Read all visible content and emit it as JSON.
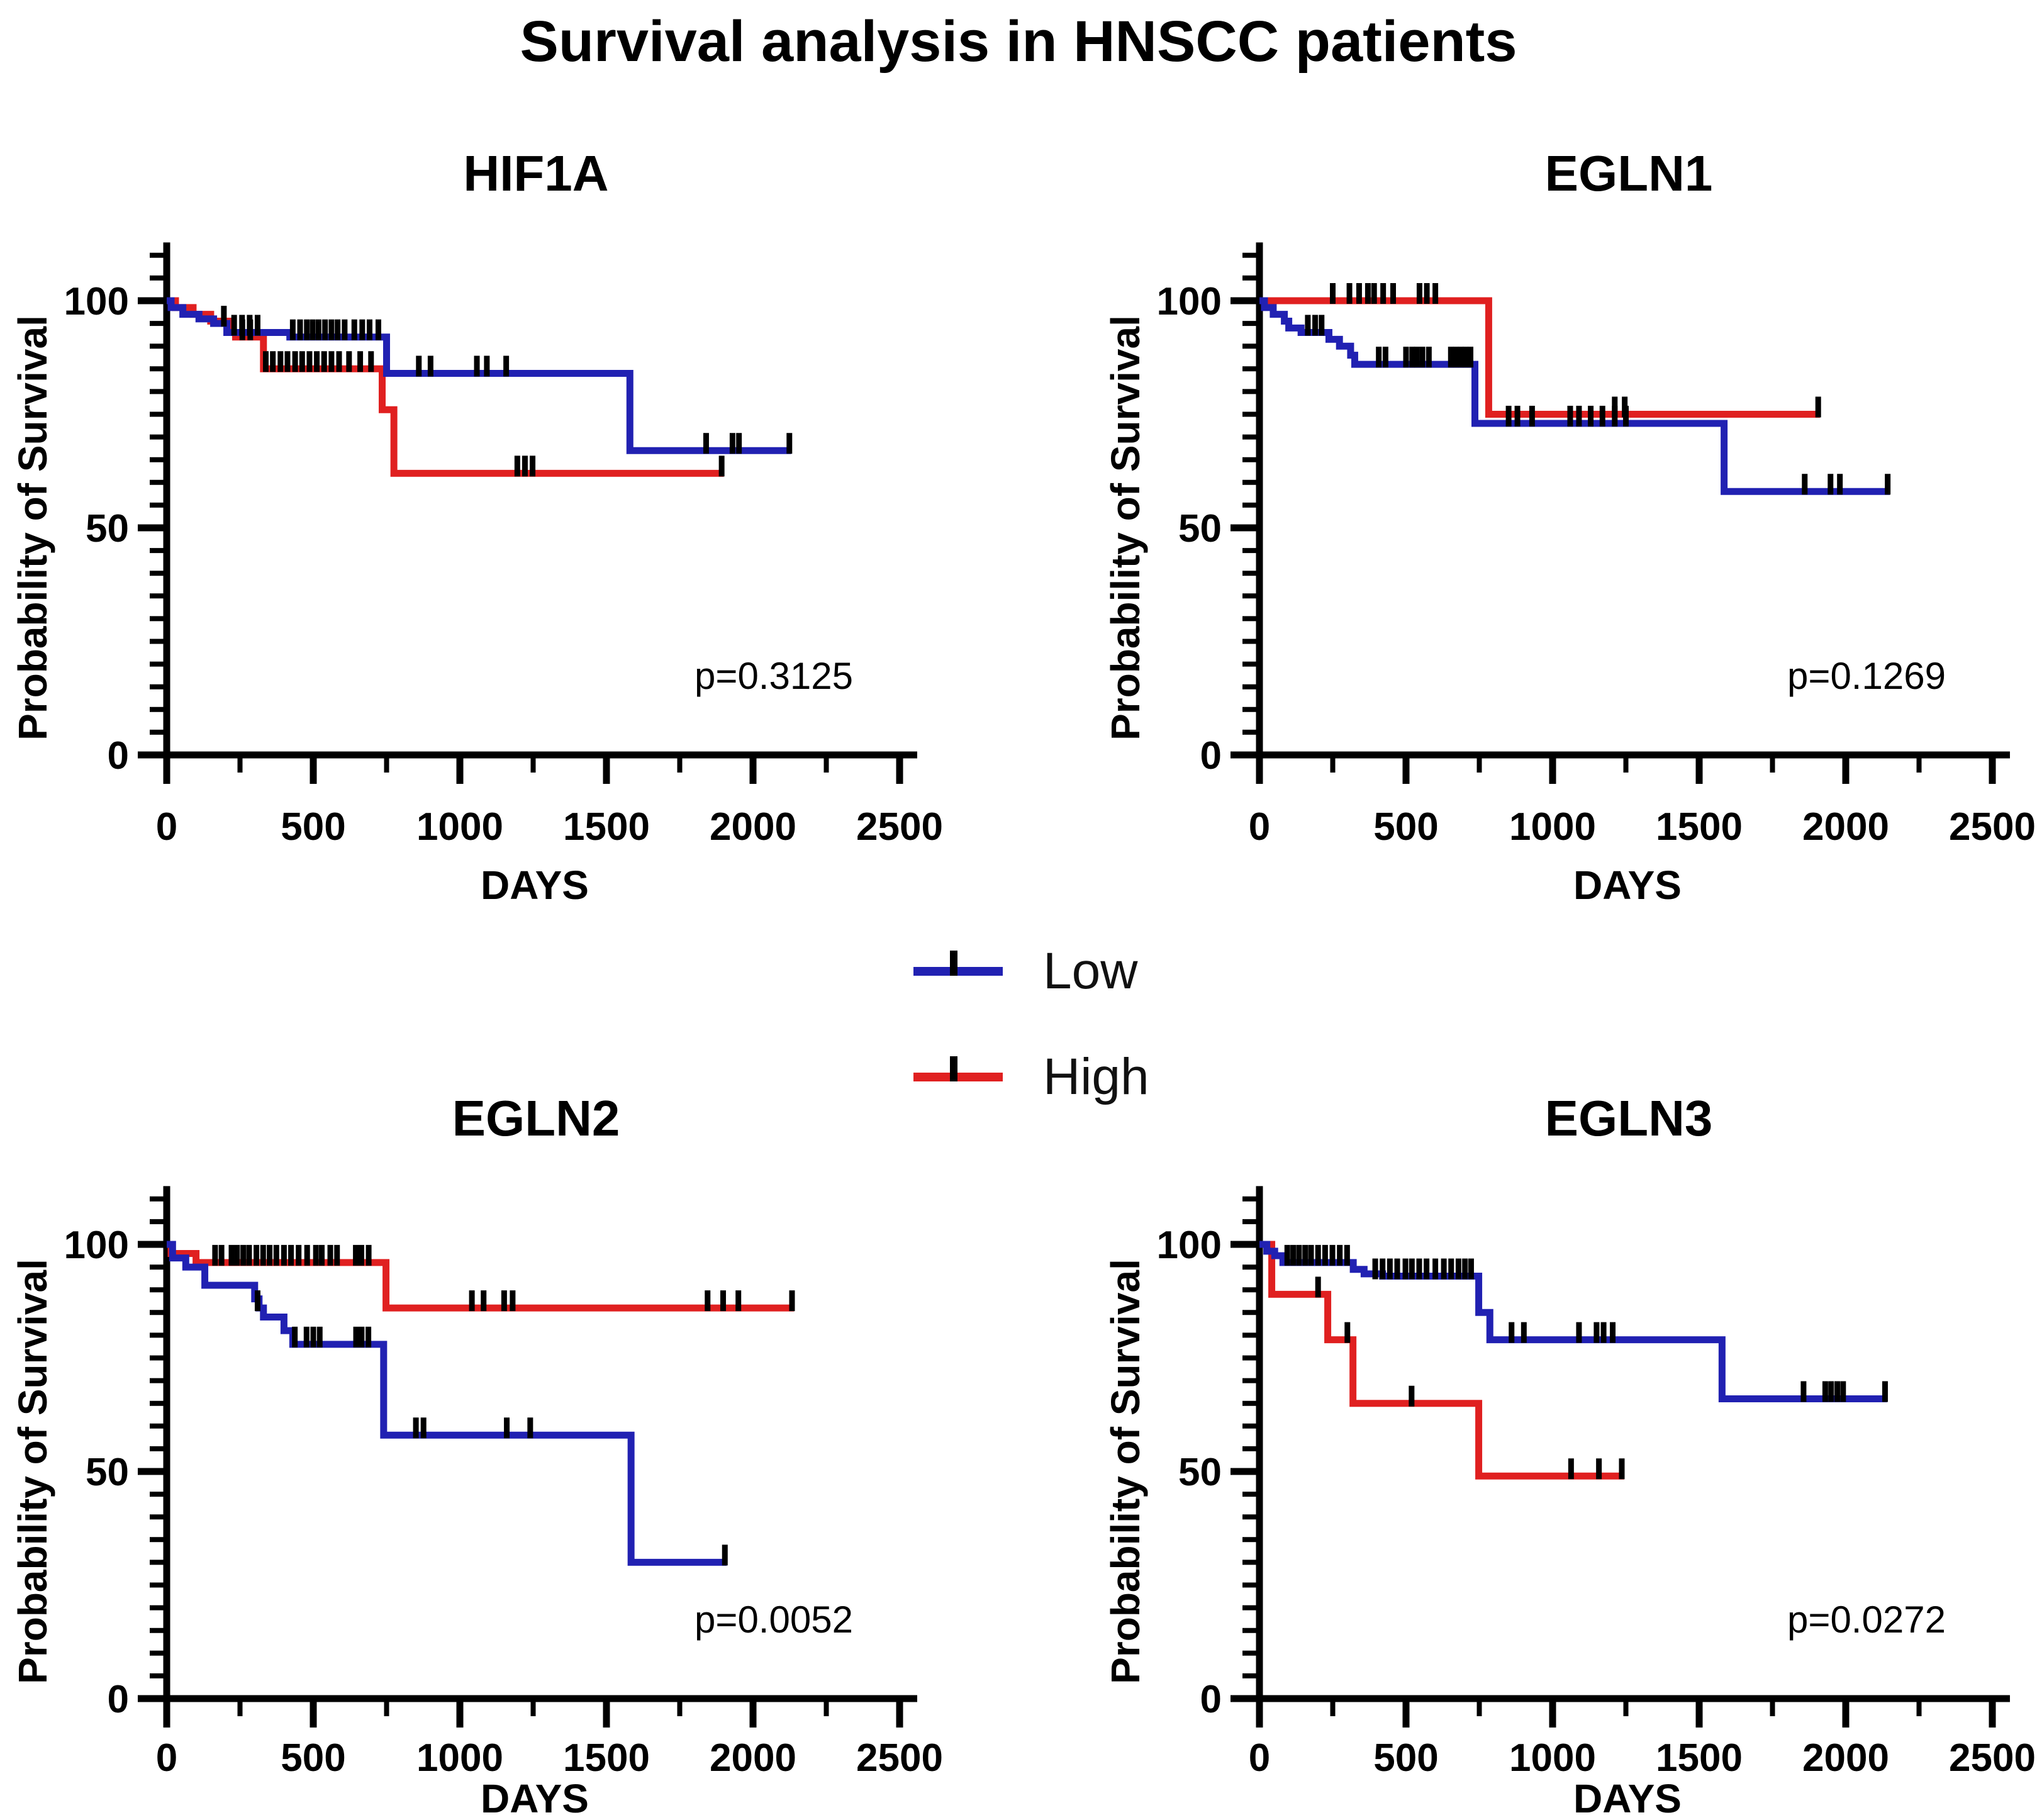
{
  "figure_title": "Survival analysis in HNSCC patients",
  "legend": {
    "items": [
      {
        "label": "Low",
        "color": "#2121b2"
      },
      {
        "label": "High",
        "color": "#e02020"
      }
    ]
  },
  "axes": {
    "xlabel": "DAYS",
    "ylabel": "Probability of Survival",
    "xticks": [
      0,
      500,
      1000,
      1500,
      2000,
      2500
    ],
    "x_minor_ticks": [
      250,
      750,
      1250,
      1750,
      2250
    ],
    "yticks": [
      0,
      50,
      100
    ],
    "y_minor_step": 5,
    "xlim": [
      0,
      2560
    ],
    "ylim": [
      0,
      112
    ],
    "grid": false,
    "legend_position": "center-between-rows"
  },
  "chart_data": [
    {
      "type": "line",
      "subtype": "kaplan-meier-step",
      "title": "HIF1A",
      "p_label": "p=0.3125",
      "series": [
        {
          "name": "Low",
          "color": "#2121b2",
          "points": [
            [
              0,
              100
            ],
            [
              15,
              98.5
            ],
            [
              55,
              97
            ],
            [
              110,
              96
            ],
            [
              160,
              95
            ],
            [
              205,
              93
            ],
            [
              420,
              92
            ],
            [
              750,
              84
            ],
            [
              1580,
              67
            ],
            [
              2130,
              67
            ]
          ],
          "censors": [
            [
              195,
              95
            ],
            [
              230,
              93
            ],
            [
              257,
              93
            ],
            [
              283,
              93
            ],
            [
              310,
              93
            ],
            [
              430,
              92
            ],
            [
              455,
              92
            ],
            [
              478,
              92
            ],
            [
              498,
              92
            ],
            [
              518,
              92
            ],
            [
              540,
              92
            ],
            [
              562,
              92
            ],
            [
              583,
              92
            ],
            [
              607,
              92
            ],
            [
              640,
              92
            ],
            [
              667,
              92
            ],
            [
              692,
              92
            ],
            [
              722,
              92
            ],
            [
              860,
              84
            ],
            [
              900,
              84
            ],
            [
              1058,
              84
            ],
            [
              1092,
              84
            ],
            [
              1158,
              84
            ],
            [
              1840,
              67
            ],
            [
              1930,
              67
            ],
            [
              1952,
              67
            ],
            [
              2124,
              67
            ]
          ]
        },
        {
          "name": "High",
          "color": "#e02020",
          "points": [
            [
              0,
              100
            ],
            [
              30,
              98.5
            ],
            [
              90,
              97
            ],
            [
              150,
              95.5
            ],
            [
              210,
              93
            ],
            [
              235,
              92
            ],
            [
              330,
              85
            ],
            [
              735,
              76
            ],
            [
              775,
              62
            ],
            [
              1900,
              62
            ]
          ],
          "censors": [
            [
              258,
              92
            ],
            [
              285,
              92
            ],
            [
              338,
              85
            ],
            [
              362,
              85
            ],
            [
              388,
              85
            ],
            [
              412,
              85
            ],
            [
              438,
              85
            ],
            [
              462,
              85
            ],
            [
              487,
              85
            ],
            [
              512,
              85
            ],
            [
              537,
              85
            ],
            [
              562,
              85
            ],
            [
              588,
              85
            ],
            [
              622,
              85
            ],
            [
              660,
              85
            ],
            [
              697,
              85
            ],
            [
              1196,
              62
            ],
            [
              1222,
              62
            ],
            [
              1248,
              62
            ],
            [
              1893,
              62
            ]
          ]
        }
      ]
    },
    {
      "type": "line",
      "subtype": "kaplan-meier-step",
      "title": "EGLN1",
      "p_label": "p=0.1269",
      "series": [
        {
          "name": "Low",
          "color": "#2121b2",
          "points": [
            [
              0,
              100
            ],
            [
              17,
              98.5
            ],
            [
              47,
              97
            ],
            [
              85,
              95.5
            ],
            [
              100,
              94
            ],
            [
              142,
              93
            ],
            [
              237,
              91.5
            ],
            [
              273,
              90
            ],
            [
              311,
              88
            ],
            [
              325,
              86
            ],
            [
              735,
              73
            ],
            [
              1585,
              58
            ],
            [
              2150,
              58
            ]
          ],
          "censors": [
            [
              165,
              93
            ],
            [
              190,
              93
            ],
            [
              212,
              93
            ],
            [
              407,
              86
            ],
            [
              430,
              86
            ],
            [
              500,
              86
            ],
            [
              521,
              86
            ],
            [
              537,
              86
            ],
            [
              556,
              86
            ],
            [
              578,
              86
            ],
            [
              653,
              86
            ],
            [
              670,
              86
            ],
            [
              687,
              86
            ],
            [
              703,
              86
            ],
            [
              720,
              86
            ],
            [
              850,
              73
            ],
            [
              880,
              73
            ],
            [
              930,
              73
            ],
            [
              1060,
              73
            ],
            [
              1090,
              73
            ],
            [
              1130,
              73
            ],
            [
              1170,
              73
            ],
            [
              1212,
              73
            ],
            [
              1250,
              73
            ],
            [
              1860,
              58
            ],
            [
              1948,
              58
            ],
            [
              1980,
              58
            ],
            [
              2143,
              58
            ]
          ]
        },
        {
          "name": "High",
          "color": "#e02020",
          "points": [
            [
              0,
              100
            ],
            [
              782,
              75
            ],
            [
              1912,
              75
            ]
          ],
          "censors": [
            [
              250,
              100
            ],
            [
              307,
              100
            ],
            [
              340,
              100
            ],
            [
              370,
              100
            ],
            [
              391,
              100
            ],
            [
              422,
              100
            ],
            [
              456,
              100
            ],
            [
              546,
              100
            ],
            [
              571,
              100
            ],
            [
              600,
              100
            ],
            [
              1212,
              75
            ],
            [
              1246,
              75
            ],
            [
              1906,
              75
            ]
          ]
        }
      ]
    },
    {
      "type": "line",
      "subtype": "kaplan-meier-step",
      "title": "EGLN2",
      "p_label": "p=0.0052",
      "series": [
        {
          "name": "Low",
          "color": "#2121b2",
          "points": [
            [
              0,
              100
            ],
            [
              20,
              97
            ],
            [
              65,
              95
            ],
            [
              130,
              91
            ],
            [
              300,
              88
            ],
            [
              315,
              86
            ],
            [
              330,
              84
            ],
            [
              400,
              81
            ],
            [
              430,
              78
            ],
            [
              740,
              58
            ],
            [
              1584,
              30
            ],
            [
              1910,
              30
            ]
          ],
          "censors": [
            [
              310,
              86
            ],
            [
              437,
              78
            ],
            [
              477,
              78
            ],
            [
              500,
              78
            ],
            [
              522,
              78
            ],
            [
              646,
              78
            ],
            [
              665,
              78
            ],
            [
              688,
              78
            ],
            [
              850,
              58
            ],
            [
              876,
              58
            ],
            [
              1160,
              58
            ],
            [
              1240,
              58
            ],
            [
              1904,
              30
            ]
          ]
        },
        {
          "name": "High",
          "color": "#e02020",
          "points": [
            [
              0,
              100
            ],
            [
              15,
              98
            ],
            [
              100,
              96
            ],
            [
              748,
              86
            ],
            [
              2140,
              86
            ]
          ],
          "censors": [
            [
              165,
              96
            ],
            [
              187,
              96
            ],
            [
              221,
              96
            ],
            [
              240,
              96
            ],
            [
              261,
              96
            ],
            [
              281,
              96
            ],
            [
              306,
              96
            ],
            [
              329,
              96
            ],
            [
              351,
              96
            ],
            [
              374,
              96
            ],
            [
              400,
              96
            ],
            [
              424,
              96
            ],
            [
              450,
              96
            ],
            [
              479,
              96
            ],
            [
              509,
              96
            ],
            [
              529,
              96
            ],
            [
              558,
              96
            ],
            [
              581,
              96
            ],
            [
              645,
              96
            ],
            [
              664,
              96
            ],
            [
              689,
              96
            ],
            [
              1041,
              86
            ],
            [
              1081,
              86
            ],
            [
              1151,
              86
            ],
            [
              1180,
              86
            ],
            [
              1845,
              86
            ],
            [
              1898,
              86
            ],
            [
              1950,
              86
            ],
            [
              2133,
              86
            ]
          ]
        }
      ]
    },
    {
      "type": "line",
      "subtype": "kaplan-meier-step",
      "title": "EGLN3",
      "p_label": "p=0.0272",
      "series": [
        {
          "name": "Low",
          "color": "#2121b2",
          "points": [
            [
              0,
              100
            ],
            [
              25,
              98.5
            ],
            [
              52,
              97.5
            ],
            [
              80,
              96
            ],
            [
              320,
              94.5
            ],
            [
              357,
              93.5
            ],
            [
              420,
              93
            ],
            [
              748,
              85
            ],
            [
              786,
              79
            ],
            [
              1578,
              66
            ],
            [
              2141,
              66
            ]
          ],
          "censors": [
            [
              95,
              96
            ],
            [
              115,
              96
            ],
            [
              135,
              96
            ],
            [
              156,
              96
            ],
            [
              176,
              96
            ],
            [
              200,
              96
            ],
            [
              224,
              96
            ],
            [
              249,
              96
            ],
            [
              274,
              96
            ],
            [
              299,
              96
            ],
            [
              395,
              93
            ],
            [
              420,
              93
            ],
            [
              445,
              93
            ],
            [
              470,
              93
            ],
            [
              498,
              93
            ],
            [
              520,
              93
            ],
            [
              545,
              93
            ],
            [
              570,
              93
            ],
            [
              600,
              93
            ],
            [
              629,
              93
            ],
            [
              654,
              93
            ],
            [
              679,
              93
            ],
            [
              701,
              93
            ],
            [
              722,
              93
            ],
            [
              860,
              79
            ],
            [
              902,
              79
            ],
            [
              1090,
              79
            ],
            [
              1150,
              79
            ],
            [
              1174,
              79
            ],
            [
              1205,
              79
            ],
            [
              1856,
              66
            ],
            [
              1930,
              66
            ],
            [
              1950,
              66
            ],
            [
              1971,
              66
            ],
            [
              1991,
              66
            ],
            [
              2134,
              66
            ]
          ]
        },
        {
          "name": "High",
          "color": "#e02020",
          "points": [
            [
              0,
              100
            ],
            [
              42,
              89
            ],
            [
              233,
              79
            ],
            [
              319,
              65
            ],
            [
              748,
              49
            ],
            [
              1244,
              49
            ]
          ],
          "censors": [
            [
              200,
              89
            ],
            [
              300,
              79
            ],
            [
              519,
              65
            ],
            [
              1063,
              49
            ],
            [
              1158,
              49
            ],
            [
              1236,
              49
            ]
          ]
        }
      ]
    }
  ]
}
